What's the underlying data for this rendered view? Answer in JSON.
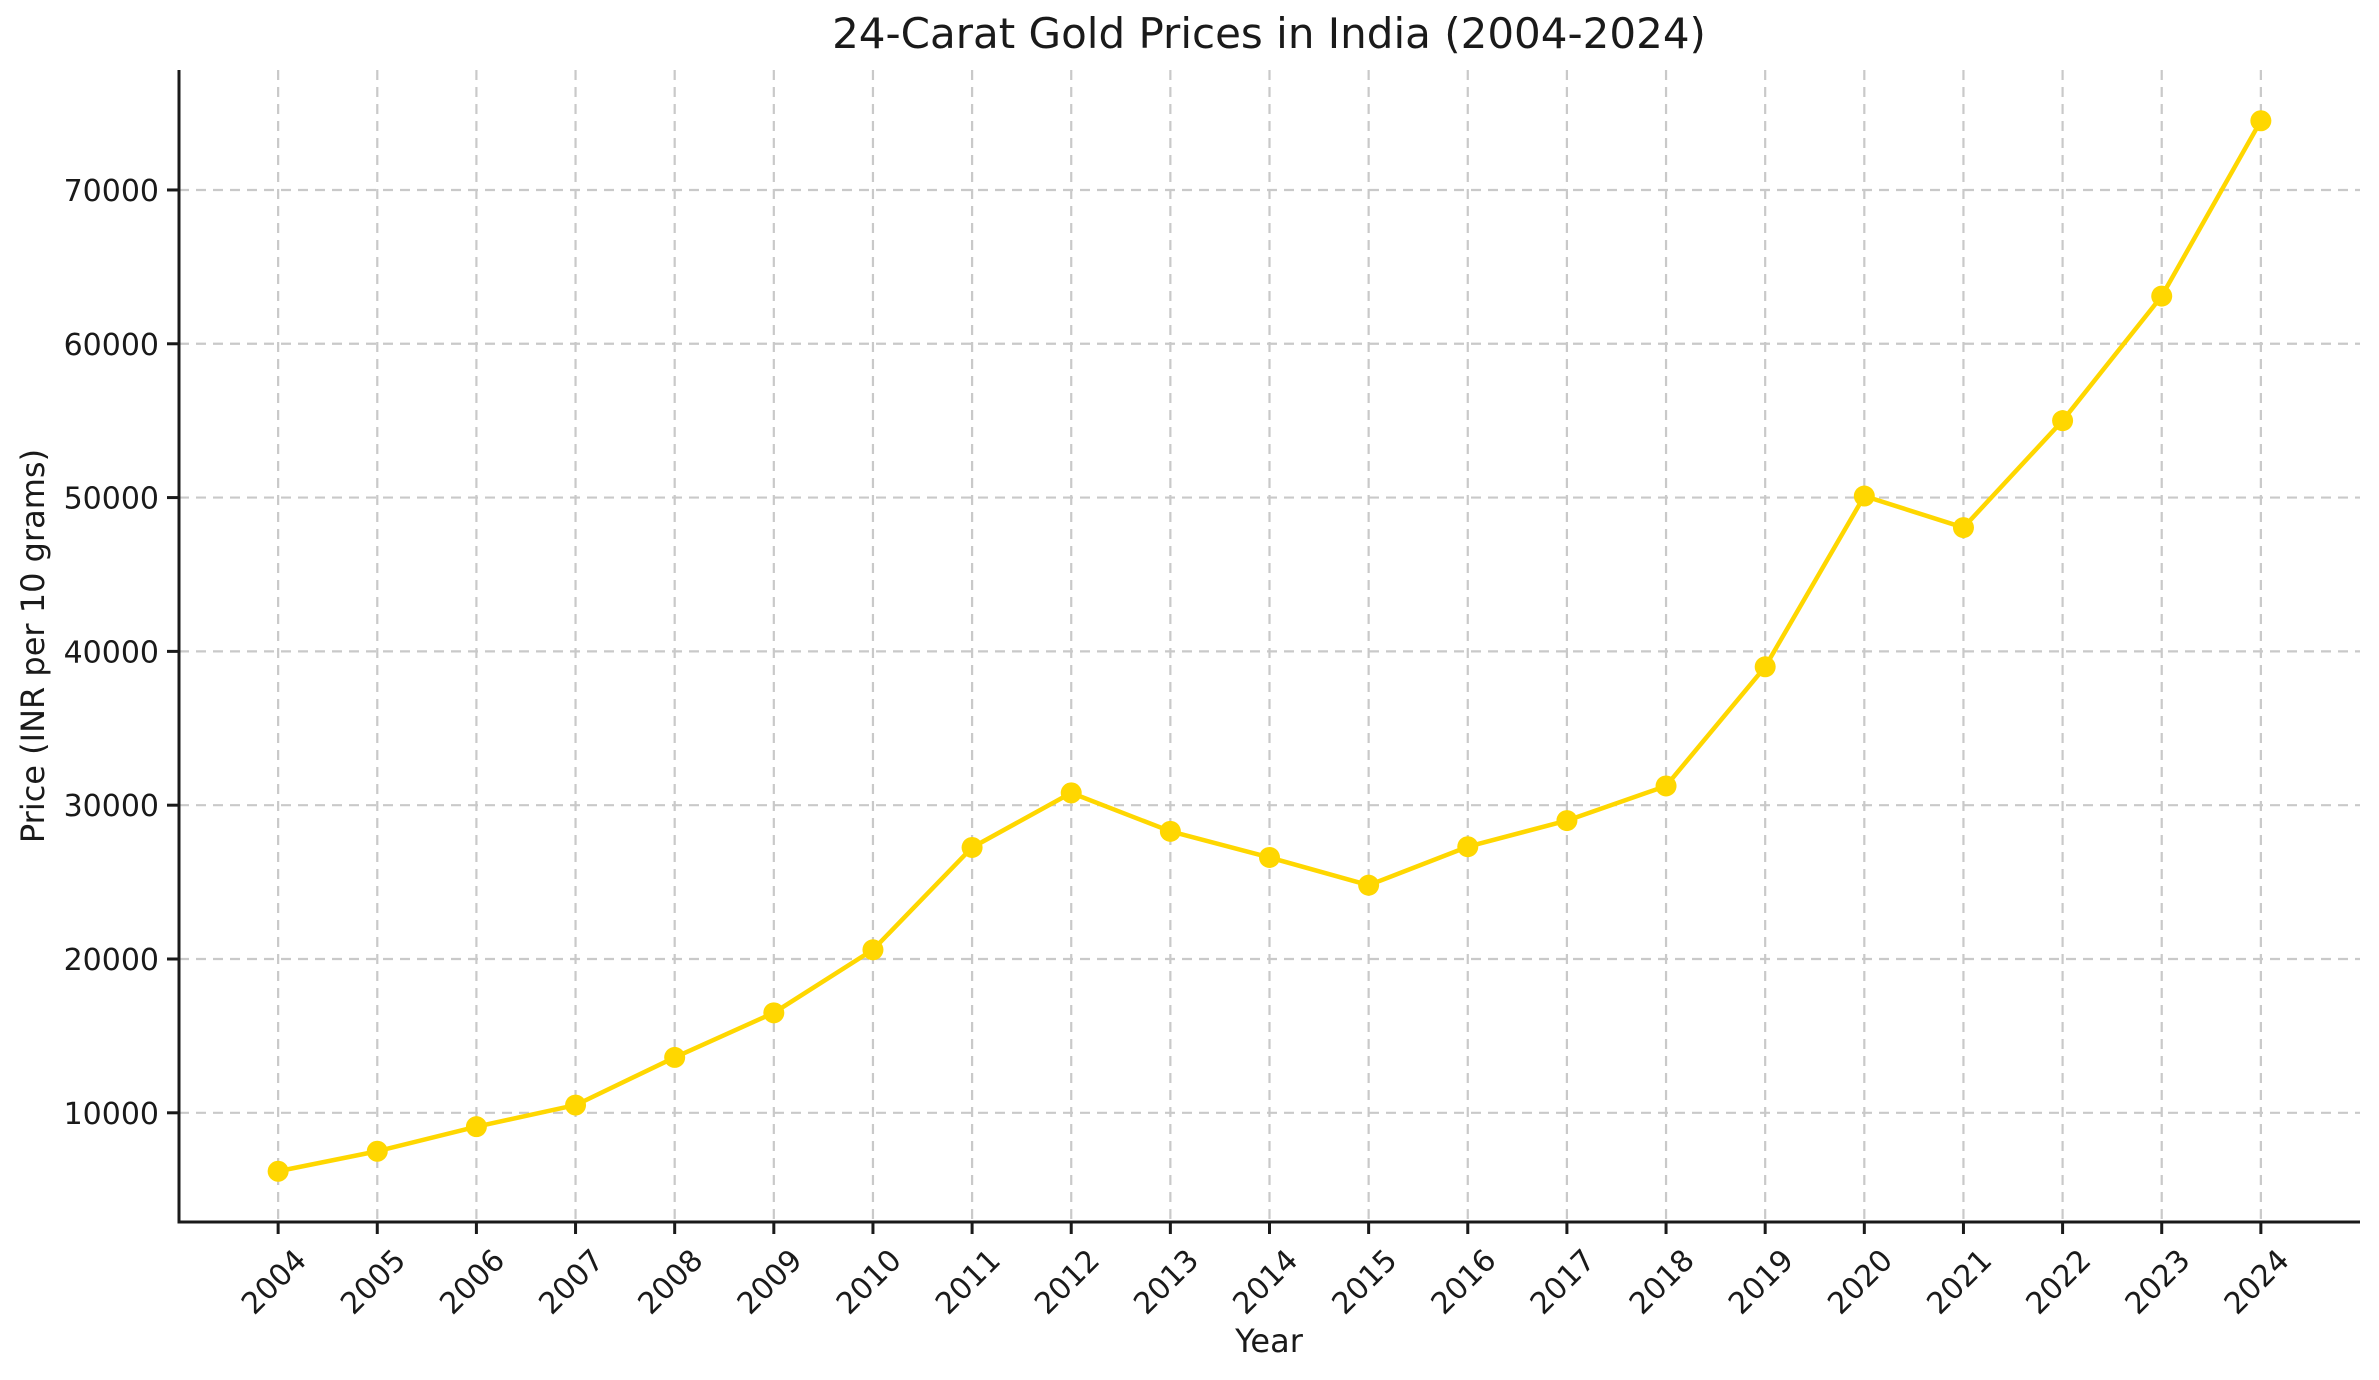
{
  "figure": {
    "title": "24-Carat Gold Prices in India (2004-2024)"
  },
  "chart_data": {
    "type": "line",
    "title": "24-Carat Gold Prices in India (2004-2024)",
    "xlabel": "Year",
    "ylabel": "Price (INR per 10 grams)",
    "x": [
      2004,
      2005,
      2006,
      2007,
      2008,
      2009,
      2010,
      2011,
      2012,
      2013,
      2014,
      2015,
      2016,
      2017,
      2018,
      2019,
      2020,
      2021,
      2022,
      2023,
      2024
    ],
    "series": [
      {
        "name": "24-carat gold price",
        "values": [
          6200,
          7500,
          9100,
          10500,
          13600,
          16500,
          20600,
          27250,
          30800,
          28300,
          26600,
          24800,
          27300,
          29000,
          31250,
          39000,
          50100,
          48050,
          55000,
          63100,
          74500
        ],
        "color": "#FFD700",
        "marker": "circle"
      }
    ],
    "xlim": [
      2003,
      2025
    ],
    "ylim": [
      2900,
      77800
    ],
    "yticks": [
      10000,
      20000,
      30000,
      40000,
      50000,
      60000,
      70000
    ],
    "xticks": [
      2004,
      2005,
      2006,
      2007,
      2008,
      2009,
      2010,
      2011,
      2012,
      2013,
      2014,
      2015,
      2016,
      2017,
      2018,
      2019,
      2020,
      2021,
      2022,
      2023,
      2024
    ],
    "xtick_rotation": 45,
    "grid": true,
    "grid_style": "dashed",
    "legend": "none",
    "colors": {
      "line": "#FFD700",
      "grid": "#c9c9c9",
      "axis": "#1a1a1a",
      "text": "#1a1a1a",
      "background": "#ffffff"
    }
  }
}
